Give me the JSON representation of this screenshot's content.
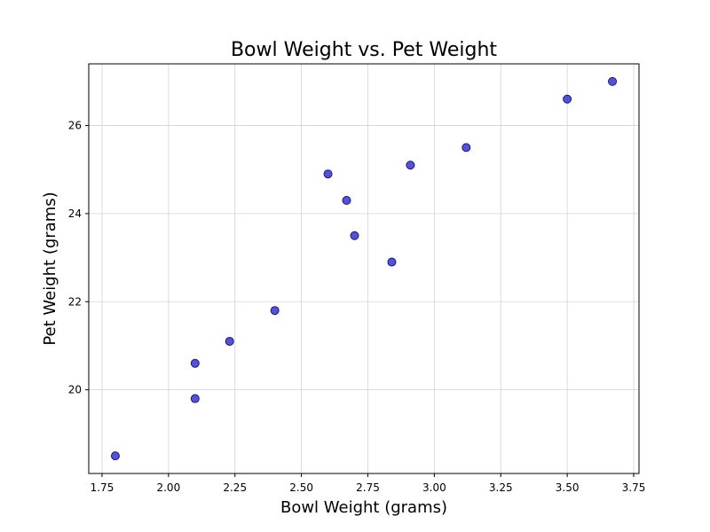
{
  "chart_data": {
    "type": "scatter",
    "title": "Bowl Weight vs. Pet Weight",
    "xlabel": "Bowl Weight (grams)",
    "ylabel": "Pet Weight (grams)",
    "xlim": [
      1.7,
      3.77
    ],
    "ylim": [
      18.1,
      27.4
    ],
    "xticks": [
      1.75,
      2.0,
      2.25,
      2.5,
      2.75,
      3.0,
      3.25,
      3.5,
      3.75
    ],
    "xtick_labels": [
      "1.75",
      "2.00",
      "2.25",
      "2.50",
      "2.75",
      "3.00",
      "3.25",
      "3.50",
      "3.75"
    ],
    "yticks": [
      20,
      22,
      24,
      26
    ],
    "ytick_labels": [
      "20",
      "22",
      "24",
      "26"
    ],
    "grid": true,
    "marker_color": "#3333dd",
    "marker_edge_color": "#1a1a66",
    "points": [
      {
        "x": 1.8,
        "y": 18.5
      },
      {
        "x": 2.1,
        "y": 19.8
      },
      {
        "x": 2.1,
        "y": 20.6
      },
      {
        "x": 2.23,
        "y": 21.1
      },
      {
        "x": 2.4,
        "y": 21.8
      },
      {
        "x": 2.6,
        "y": 24.9
      },
      {
        "x": 2.67,
        "y": 24.3
      },
      {
        "x": 2.7,
        "y": 23.5
      },
      {
        "x": 2.84,
        "y": 22.9
      },
      {
        "x": 2.91,
        "y": 25.1
      },
      {
        "x": 3.12,
        "y": 25.5
      },
      {
        "x": 3.5,
        "y": 26.6
      },
      {
        "x": 3.67,
        "y": 27.0
      }
    ]
  }
}
